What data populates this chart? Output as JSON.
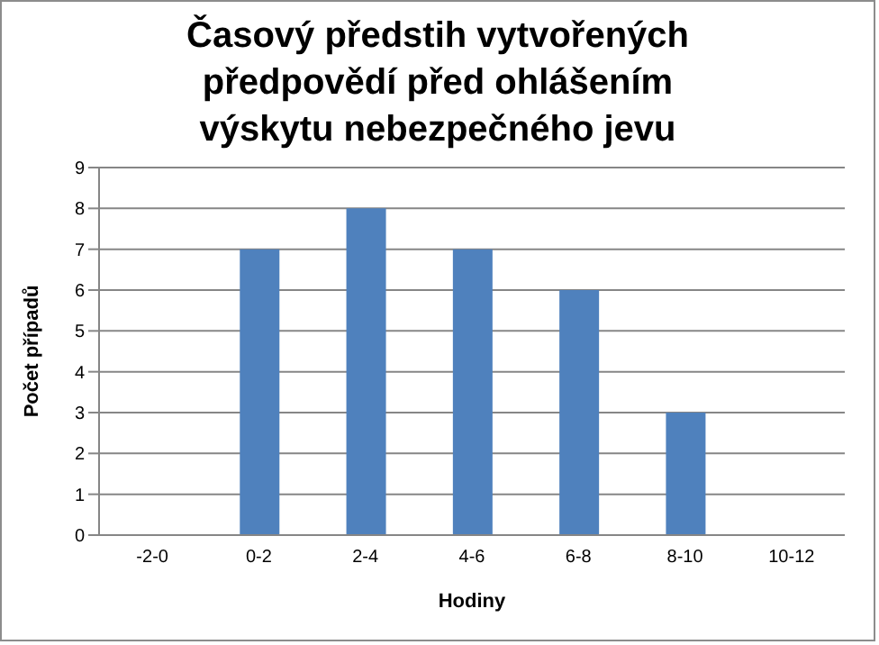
{
  "chart_data": {
    "type": "bar",
    "title": "Časový předstih vytvořených předpovědí před ohlášením výskytu nebezpečného jevu",
    "xlabel": "Hodiny",
    "ylabel": "Počet případů",
    "categories": [
      "-2-0",
      "0-2",
      "2-4",
      "4-6",
      "6-8",
      "8-10",
      "10-12"
    ],
    "values": [
      0,
      7,
      8,
      7,
      6,
      3,
      0
    ],
    "color": "#4f81bd",
    "ylim": [
      0,
      9
    ],
    "yticks": [
      0,
      1,
      2,
      3,
      4,
      5,
      6,
      7,
      8,
      9
    ],
    "grid": "y"
  }
}
